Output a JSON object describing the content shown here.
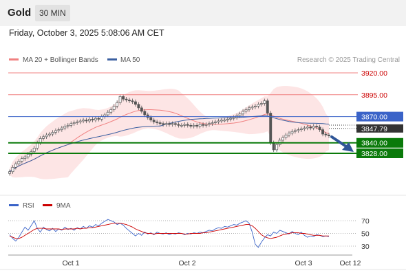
{
  "header": {
    "title": "Gold",
    "timeframe": "30 MIN"
  },
  "datetime": "Friday, October 3, 2025 5:08:06 AM CET",
  "colors": {
    "red_level": "#f08080",
    "blue_level": "#3a63c8",
    "green_level": "#0a7a0a",
    "price_tag": "#333333",
    "arrow": "#2f5597",
    "candle": "#555555",
    "ma20": "#f08080",
    "ma50": "#3a5fa0",
    "bands": "#fde0e0",
    "rsi": "#3a63c8",
    "rsi_ma": "#cc0000"
  },
  "chart_data": [
    {
      "type": "candlestick",
      "legend": [
        {
          "name": "MA 20 + Bollinger Bands",
          "color": "#f08080"
        },
        {
          "name": "MA 50",
          "color": "#3a5fa0"
        }
      ],
      "credit": "Research © 2025 Trading Central",
      "x_ticks": [
        "Oct 1",
        "Oct 2",
        "Oct 3",
        "Oct 12"
      ],
      "y_range": [
        3788,
        3930
      ],
      "levels": [
        {
          "value": 3920.0,
          "label": "3920.00",
          "style": "resistance"
        },
        {
          "value": 3895.0,
          "label": "3895.00",
          "style": "resistance"
        },
        {
          "value": 3870.0,
          "label": "3870.00",
          "style": "pivot"
        },
        {
          "value": 3840.0,
          "label": "3840.00",
          "style": "support"
        },
        {
          "value": 3828.0,
          "label": "3828.00",
          "style": "support"
        }
      ],
      "last_price": {
        "value": 3847.79,
        "label": "3847.79"
      },
      "close_series": [
        3807,
        3812,
        3816,
        3819,
        3822,
        3824,
        3827,
        3830,
        3834,
        3840,
        3845,
        3847,
        3849,
        3850,
        3852,
        3854,
        3855,
        3857,
        3859,
        3860,
        3862,
        3863,
        3864,
        3865,
        3866,
        3865,
        3867,
        3866,
        3868,
        3867,
        3870,
        3872,
        3875,
        3878,
        3882,
        3886,
        3893,
        3890,
        3889,
        3888,
        3887,
        3884,
        3880,
        3876,
        3872,
        3869,
        3866,
        3864,
        3863,
        3862,
        3861,
        3862,
        3861,
        3862,
        3861,
        3860,
        3860,
        3861,
        3860,
        3859,
        3860,
        3859,
        3861,
        3860,
        3861,
        3862,
        3863,
        3864,
        3865,
        3866,
        3866,
        3867,
        3868,
        3869,
        3871,
        3873,
        3876,
        3878,
        3880,
        3881,
        3882,
        3884,
        3885,
        3888,
        3874,
        3840,
        3832,
        3838,
        3843,
        3846,
        3849,
        3851,
        3853,
        3854,
        3855,
        3856,
        3857,
        3858,
        3857,
        3859,
        3858,
        3855,
        3850,
        3849,
        3848
      ]
    },
    {
      "type": "line",
      "legend": [
        {
          "name": "RSI",
          "color": "#3a63c8"
        },
        {
          "name": "9MA",
          "color": "#cc0000"
        }
      ],
      "y_ticks": [
        70,
        50,
        30
      ],
      "y_range": [
        20,
        80
      ],
      "rsi": [
        48,
        42,
        38,
        44,
        52,
        60,
        55,
        62,
        70,
        58,
        52,
        60,
        56,
        54,
        58,
        53,
        57,
        55,
        60,
        56,
        58,
        55,
        59,
        57,
        61,
        58,
        62,
        60,
        64,
        62,
        66,
        69,
        72,
        70,
        68,
        64,
        66,
        63,
        58,
        54,
        50,
        46,
        50,
        47,
        52,
        49,
        51,
        48,
        52,
        50,
        49,
        51,
        48,
        50,
        49,
        51,
        50,
        48,
        50,
        49,
        51,
        50,
        52,
        51,
        53,
        55,
        54,
        57,
        59,
        58,
        61,
        60,
        62,
        64,
        63,
        66,
        68,
        70,
        66,
        52,
        33,
        28,
        36,
        43,
        48,
        46,
        52,
        50,
        55,
        53,
        51,
        49,
        53,
        50,
        48,
        52,
        47,
        44,
        46,
        45,
        48,
        47,
        45,
        46,
        45
      ],
      "rsi_ma": [
        46,
        44,
        42,
        42,
        44,
        47,
        50,
        53,
        56,
        58,
        58,
        58,
        57,
        57,
        57,
        57,
        57,
        56,
        57,
        57,
        57,
        57,
        58,
        57,
        58,
        58,
        59,
        59,
        60,
        61,
        62,
        63,
        64,
        65,
        66,
        66,
        66,
        65,
        64,
        62,
        60,
        57,
        55,
        53,
        51,
        50,
        50,
        49,
        50,
        50,
        50,
        50,
        50,
        50,
        50,
        50,
        50,
        49,
        49,
        50,
        50,
        50,
        50,
        51,
        51,
        52,
        53,
        54,
        55,
        56,
        57,
        58,
        59,
        60,
        61,
        62,
        63,
        64,
        64,
        62,
        58,
        53,
        48,
        45,
        43,
        42,
        43,
        44,
        46,
        48,
        49,
        50,
        51,
        51,
        51,
        50,
        50,
        49,
        48,
        47,
        47,
        47,
        46,
        46,
        46
      ]
    }
  ]
}
